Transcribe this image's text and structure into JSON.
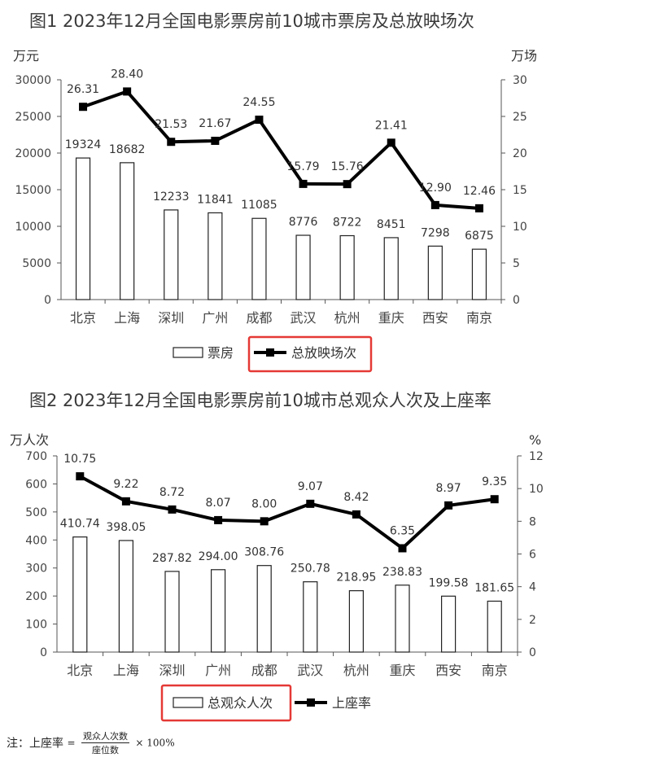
{
  "chart_data": [
    {
      "type": "bar+line",
      "title": "图1  2023年12月全国电影票房前10城市票房及总放映场次",
      "left_unit": "万元",
      "right_unit": "万场",
      "categories": [
        "北京",
        "上海",
        "深圳",
        "广州",
        "成都",
        "武汉",
        "杭州",
        "重庆",
        "西安",
        "南京"
      ],
      "y_left": {
        "min": 0,
        "max": 30000,
        "ticks": [
          "0",
          "5000",
          "10000",
          "15000",
          "20000",
          "25000",
          "30000"
        ]
      },
      "y_right": {
        "min": 0,
        "max": 30,
        "ticks": [
          "0",
          "5",
          "10",
          "15",
          "20",
          "25",
          "30"
        ]
      },
      "series": [
        {
          "name": "票房",
          "kind": "bar",
          "axis": "left",
          "values": [
            19324,
            18682,
            12233,
            11841,
            11085,
            8776,
            8722,
            8451,
            7298,
            6875
          ],
          "labels": [
            "19324",
            "18682",
            "12233",
            "11841",
            "11085",
            "8776",
            "8722",
            "8451",
            "7298",
            "6875"
          ]
        },
        {
          "name": "总放映场次",
          "kind": "line",
          "axis": "right",
          "values": [
            26.31,
            28.4,
            21.53,
            21.67,
            24.55,
            15.79,
            15.76,
            21.41,
            12.9,
            12.46
          ],
          "labels": [
            "26.31",
            "28.40",
            "21.53",
            "21.67",
            "24.55",
            "15.79",
            "15.76",
            "21.41",
            "12.90",
            "12.46"
          ]
        }
      ],
      "grid": false,
      "legend": "bottom",
      "highlight_color": "#e53935"
    },
    {
      "type": "bar+line",
      "title": "图2  2023年12月全国电影票房前10城市总观众人次及上座率",
      "left_unit": "万人次",
      "right_unit": "%",
      "categories": [
        "北京",
        "上海",
        "深圳",
        "广州",
        "成都",
        "武汉",
        "杭州",
        "重庆",
        "西安",
        "南京"
      ],
      "y_left": {
        "min": 0,
        "max": 700,
        "ticks": [
          "0",
          "100",
          "200",
          "300",
          "400",
          "500",
          "600",
          "700"
        ]
      },
      "y_right": {
        "min": 0,
        "max": 12,
        "ticks": [
          "0",
          "2",
          "4",
          "6",
          "8",
          "10",
          "12"
        ]
      },
      "series": [
        {
          "name": "总观众人次",
          "kind": "bar",
          "axis": "left",
          "values": [
            410.74,
            398.05,
            287.82,
            294.0,
            308.76,
            250.78,
            218.95,
            238.83,
            199.58,
            181.65
          ],
          "labels": [
            "410.74",
            "398.05",
            "287.82",
            "294.00",
            "308.76",
            "250.78",
            "218.95",
            "238.83",
            "199.58",
            "181.65"
          ]
        },
        {
          "name": "上座率",
          "kind": "line",
          "axis": "right",
          "values": [
            10.75,
            9.22,
            8.72,
            8.07,
            8.0,
            9.07,
            8.42,
            6.35,
            8.97,
            9.35
          ],
          "labels": [
            "10.75",
            "9.22",
            "8.72",
            "8.07",
            "8.00",
            "9.07",
            "8.42",
            "6.35",
            "8.97",
            "9.35"
          ]
        }
      ],
      "grid": false,
      "legend": "bottom",
      "highlight_color": "#e53935"
    }
  ],
  "note": {
    "prefix": "注：",
    "term": "上座率",
    "eq": "=",
    "numerator": "观众人次数",
    "denominator": "座位数",
    "multiplier": "× 100%"
  }
}
